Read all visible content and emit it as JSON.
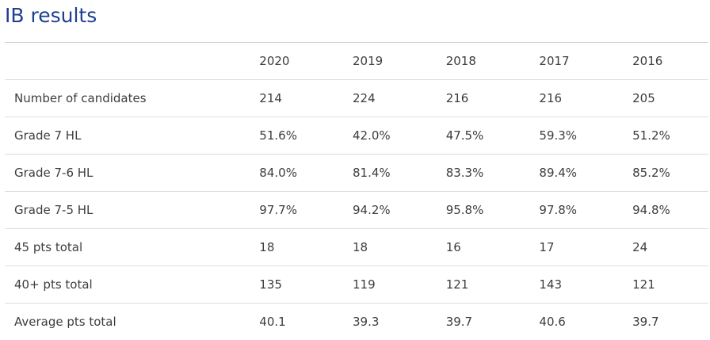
{
  "page": {
    "title": "IB results"
  },
  "table": {
    "header": [
      "",
      "2020",
      "2019",
      "2018",
      "2017",
      "2016"
    ],
    "rows": [
      {
        "label": "Number of candidates",
        "values": [
          "214",
          "224",
          "216",
          "216",
          "205"
        ]
      },
      {
        "label": "Grade 7 HL",
        "values": [
          "51.6%",
          "42.0%",
          "47.5%",
          "59.3%",
          "51.2%"
        ]
      },
      {
        "label": "Grade 7-6 HL",
        "values": [
          "84.0%",
          "81.4%",
          "83.3%",
          "89.4%",
          "85.2%"
        ]
      },
      {
        "label": "Grade 7-5 HL",
        "values": [
          "97.7%",
          "94.2%",
          "95.8%",
          "97.8%",
          "94.8%"
        ]
      },
      {
        "label": "45 pts total",
        "values": [
          "18",
          "18",
          "16",
          "17",
          "24"
        ]
      },
      {
        "label": "40+ pts total",
        "values": [
          "135",
          "119",
          "121",
          "143",
          "121"
        ]
      },
      {
        "label": "Average pts total",
        "values": [
          "40.1",
          "39.3",
          "39.7",
          "40.6",
          "39.7"
        ]
      }
    ]
  },
  "colors": {
    "title": "#1f3f8f",
    "text": "#3d3d3d",
    "divider": "#dcdcdc"
  }
}
